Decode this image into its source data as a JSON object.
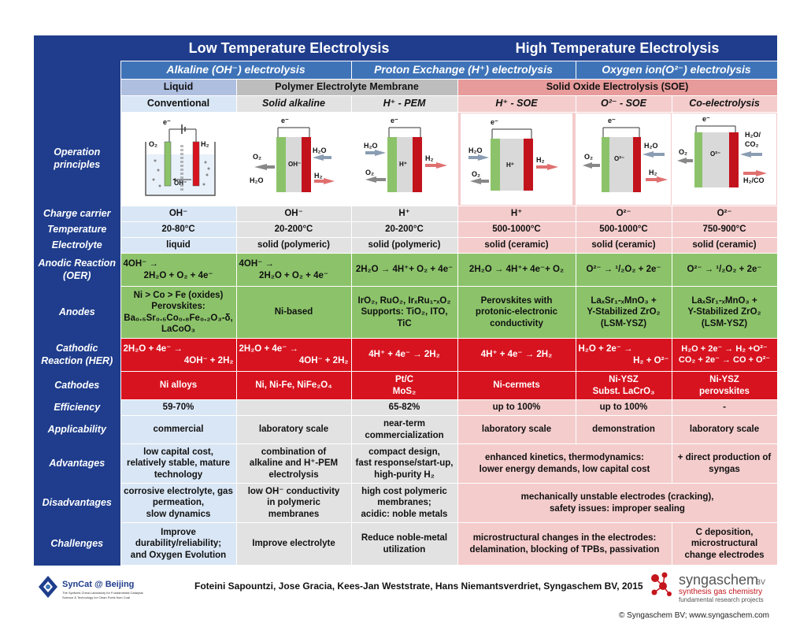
{
  "header": {
    "low_temp": "Low Temperature Electrolysis",
    "high_temp": "High Temperature Electrolysis"
  },
  "types": {
    "alkaline": "Alkaline (OH⁻) electrolysis",
    "proton": "Proton Exchange (H⁺) electrolysis",
    "oxygen": "Oxygen ion(O²⁻) electrolysis"
  },
  "electrolyte_classes": {
    "liquid": "Liquid",
    "polymer": "Polymer Electrolyte Membrane",
    "soe": "Solid Oxide Electrolysis (SOE)"
  },
  "columns": [
    "Conventional",
    "Solid alkaline",
    "H⁺ - PEM",
    "H⁺ - SOE",
    "O²⁻ - SOE",
    "Co-electrolysis"
  ],
  "diagrams": {
    "d1": {
      "e": "e⁻",
      "o2": "O₂",
      "h2": "H₂",
      "oh": "OH⁻"
    },
    "d2": {
      "e": "e⁻",
      "o2": "O₂",
      "h2o_l": "H₂O",
      "oh": "OH⁻",
      "h2o_r": "H₂O",
      "h2": "H₂"
    },
    "d3": {
      "e": "e⁻",
      "h2o": "H₂O",
      "o2": "O₂",
      "hp": "H⁺",
      "h2": "H₂"
    },
    "d4": {
      "e": "e⁻",
      "h2o": "H₂O",
      "o2": "O₂",
      "hp": "H⁺",
      "h2": "H₂"
    },
    "d5": {
      "e": "e⁻",
      "o2": "O₂",
      "o2m": "O²⁻",
      "h2o": "H₂O",
      "h2": "H₂"
    },
    "d6": {
      "e": "e⁻",
      "o2": "O₂",
      "o2m": "O²⁻",
      "h2o": "H₂O/",
      "co2": "CO₂",
      "h2co": "H₂/CO"
    }
  },
  "rows": {
    "operation": "Operation principles",
    "charge_carrier": {
      "label": "Charge carrier",
      "values": [
        "OH⁻",
        "OH⁻",
        "H⁺",
        "H⁺",
        "O²⁻",
        "O²⁻"
      ]
    },
    "temperature": {
      "label": "Temperature",
      "values": [
        "20-80°C",
        "20-200°C",
        "20-200°C",
        "500-1000°C",
        "500-1000°C",
        "750-900°C"
      ]
    },
    "electrolyte": {
      "label": "Electrolyte",
      "values": [
        "liquid",
        "solid (polymeric)",
        "solid (polymeric)",
        "solid (ceramic)",
        "solid (ceramic)",
        "solid (ceramic)"
      ]
    },
    "anodic": {
      "label": "Anodic Reaction (OER)",
      "values": [
        {
          "a": "4OH⁻ →",
          "b": "2H₂O + O₂ + 4e⁻"
        },
        {
          "a": "4OH⁻ →",
          "b": "2H₂O + O₂ + 4e⁻"
        },
        "2H₂O → 4H⁺+ O₂ + 4e⁻",
        "2H₂O →  4H⁺+ 4e⁻+ O₂",
        "O²⁻ →  ¹/₂O₂ + 2e⁻",
        "O²⁻ →  ¹/₂O₂ + 2e⁻"
      ]
    },
    "anodes": {
      "label": "Anodes",
      "values": [
        {
          "l1": "Ni > Co > Fe (oxides)",
          "l2": "Perovskites:",
          "l3": "Ba₀.₅Sr₀.₅Co₀.₈Fe₀.₂O₃-δ,",
          "l4": "LaCoO₃"
        },
        "Ni-based",
        {
          "l1": "IrO₂, RuO₂, IrₓRu₁-ₓO₂",
          "l2": "Supports: TiO₂, ITO,",
          "l3": "TiC"
        },
        {
          "l1": "Perovskites with",
          "l2": "protonic-electronic",
          "l3": "conductivity"
        },
        {
          "l1": "LaₓSr₁-ₓMnO₃ +",
          "l2": "Y-Stabilized ZrO₂",
          "l3": "(LSM-YSZ)"
        },
        {
          "l1": "LaₓSr₁-ₓMnO₃ +",
          "l2": "Y-Stabilized ZrO₂",
          "l3": "(LSM-YSZ)"
        }
      ]
    },
    "cathodic": {
      "label": "Cathodic Reaction (HER)",
      "values": [
        {
          "a": "2H₂O + 4e⁻ →",
          "b": "4OH⁻ + 2H₂"
        },
        {
          "a": "2H₂O + 4e⁻ →",
          "b": "4OH⁻ + 2H₂"
        },
        "4H⁺ + 4e⁻ → 2H₂",
        "4H⁺ + 4e⁻ → 2H₂",
        {
          "a": "H₂O + 2e⁻ →",
          "b": "H₂ + O²⁻"
        },
        {
          "a": "H₂O + 2e⁻ → H₂ +O²⁻",
          "b": "CO₂ + 2e⁻ → CO + O²⁻"
        }
      ]
    },
    "cathodes": {
      "label": "Cathodes",
      "values": [
        "Ni alloys",
        "Ni, Ni-Fe, NiFe₂O₄",
        {
          "a": "Pt/C",
          "b": "MoS₂"
        },
        "Ni-cermets",
        {
          "a": "Ni-YSZ",
          "b": "Subst. LaCrO₃"
        },
        {
          "a": "Ni-YSZ",
          "b": "perovskites"
        }
      ]
    },
    "efficiency": {
      "label": "Efficiency",
      "values": [
        "59-70%",
        "",
        "65-82%",
        "up to 100%",
        "up to 100%",
        "-"
      ]
    },
    "applicability": {
      "label": "Applicability",
      "values": [
        "commercial",
        "laboratory scale",
        {
          "a": "near-term",
          "b": "commercialization"
        },
        "laboratory scale",
        "demonstration",
        "laboratory scale"
      ]
    },
    "advantages": {
      "label": "Advantages",
      "values": [
        {
          "a": "low capital cost,",
          "b": "relatively stable, mature",
          "c": "technology"
        },
        {
          "a": "combination of",
          "b": "alkaline and H⁺-PEM",
          "c": "electrolysis"
        },
        {
          "a": "compact design,",
          "b": "fast response/start-up,",
          "c": "high-purity H₂"
        },
        {
          "a": "enhanced kinetics, thermodynamics:",
          "b": "lower energy demands, low capital cost"
        },
        {
          "a": "+ direct production of",
          "b": "syngas"
        }
      ]
    },
    "disadvantages": {
      "label": "Disadvantages",
      "values": [
        {
          "a": "corrosive electrolyte, gas",
          "b": "permeation,",
          "c": "slow dynamics"
        },
        {
          "a": "low OH⁻ conductivity",
          "b": "in polymeric",
          "c": "membranes"
        },
        {
          "a": "high cost polymeric",
          "b": "membranes;",
          "c": "acidic: noble metals"
        },
        {
          "a": "mechanically unstable electrodes (cracking),",
          "b": "safety issues: improper sealing"
        }
      ]
    },
    "challenges": {
      "label": "Challenges",
      "values": [
        {
          "a": "Improve",
          "b": "durability/reliability;",
          "c": "and Oxygen Evolution"
        },
        "Improve electrolyte",
        {
          "a": "Reduce noble-metal",
          "b": "utilization"
        },
        {
          "a": "microstructural changes in the electrodes:",
          "b": "delamination, blocking of TPBs, passivation"
        },
        {
          "a": "C deposition,",
          "b": "microstructural",
          "c": "change electrodes"
        }
      ]
    }
  },
  "footer": {
    "left_logo_title": "SynCat @ Beijing",
    "left_logo_sub": "The Synfuels China Laboratory for Fundamental Catalysis",
    "left_logo_sub2": "Science & Technology for Clean Fuels from Coal",
    "authors": "Foteini Sapountzi, Jose Gracia, Kees-Jan Weststrate, Hans Niemantsverdriet, Syngaschem BV, 2015",
    "right_logo_name": "syngaschem",
    "right_logo_bv": "BV",
    "right_logo_line1": "synthesis gas chemistry",
    "right_logo_line2": "fundamental research projects",
    "copyright": "© Syngaschem BV; www.syngaschem.com"
  },
  "colors": {
    "navy": "#1f3d8c",
    "blue_bar": "#3e73b8",
    "light_blue": "#d9e6f5",
    "gray": "#e2e2e2",
    "pink": "#f4cccc",
    "green": "#8cc36a",
    "red": "#d7131f"
  }
}
